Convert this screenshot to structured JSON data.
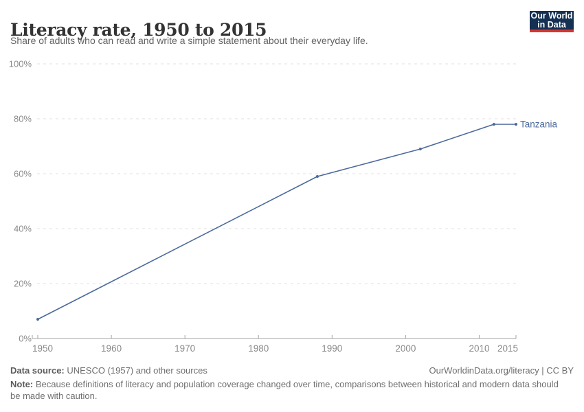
{
  "header": {
    "title": "Literacy rate, 1950 to 2015",
    "subtitle": "Share of adults who can read and write a simple statement about their everyday life."
  },
  "logo": {
    "line1": "Our World",
    "line2": "in Data",
    "bg_color": "#143052",
    "accent_color": "#d8352f"
  },
  "chart_data": {
    "type": "line",
    "title": "Literacy rate, 1950 to 2015",
    "subtitle": "Share of adults who can read and write a simple statement about their everyday life.",
    "xlim": [
      1950,
      2015
    ],
    "ylim": [
      0,
      100
    ],
    "x_ticks": [
      1950,
      1960,
      1970,
      1980,
      1990,
      2000,
      2010,
      2015
    ],
    "y_ticks": [
      0,
      20,
      40,
      60,
      80,
      100
    ],
    "y_tick_suffix": "%",
    "grid": "horizontal-dashed",
    "legend_position": "end-of-line",
    "series": [
      {
        "name": "Tanzania",
        "color": "#4c6a9c",
        "points": [
          {
            "x": 1950,
            "y": 7
          },
          {
            "x": 1988,
            "y": 59
          },
          {
            "x": 2002,
            "y": 69
          },
          {
            "x": 2012,
            "y": 78
          },
          {
            "x": 2015,
            "y": 78
          }
        ]
      }
    ],
    "colors": {
      "grid": "#e2e2e2",
      "axis": "#a3a3a3",
      "tick_text": "#8a8a8a"
    }
  },
  "footer": {
    "datasource_label": "Data source:",
    "datasource_text": " UNESCO (1957) and other sources",
    "link": "OurWorldinData.org/literacy | CC BY",
    "note_label": "Note:",
    "note_text": " Because definitions of literacy and population coverage changed over time, comparisons between historical and modern data should be made with caution."
  }
}
